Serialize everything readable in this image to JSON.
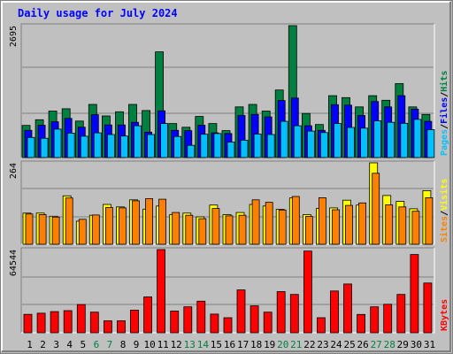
{
  "chart_data": {
    "type": "bar",
    "title": "Daily usage for July 2024",
    "categories": [
      "1",
      "2",
      "3",
      "4",
      "5",
      "6",
      "7",
      "8",
      "9",
      "10",
      "11",
      "12",
      "13",
      "14",
      "15",
      "16",
      "17",
      "18",
      "19",
      "20",
      "21",
      "22",
      "23",
      "24",
      "25",
      "26",
      "27",
      "28",
      "29",
      "30",
      "31"
    ],
    "weekend_days": [
      "6",
      "7",
      "13",
      "14",
      "20",
      "21",
      "27",
      "28"
    ],
    "colors": {
      "background": "#c0c0c0",
      "title": "#0000ff",
      "weekday_label": "#000000",
      "weekend_label": "#008040",
      "hits": "#008040",
      "files": "#0000ff",
      "pages": "#00c0ff",
      "visits": "#ffff00",
      "sites": "#ff8000",
      "kbytes": "#ff0000"
    },
    "panels": [
      {
        "ymax_label": "2695",
        "ylim": [
          0,
          2695
        ],
        "legend_words": [
          {
            "text": "Pages",
            "color": "#00c0ff"
          },
          {
            "text": "/",
            "color": "#000000"
          },
          {
            "text": "Files",
            "color": "#0000ff"
          },
          {
            "text": "/",
            "color": "#000000"
          },
          {
            "text": "Hits",
            "color": "#008040"
          }
        ],
        "series": [
          {
            "name": "Hits",
            "color": "#008040",
            "values": [
              656,
              773,
              950,
              997,
              745,
              1085,
              850,
              935,
              1085,
              960,
              2160,
              695,
              618,
              840,
              695,
              550,
              1035,
              1085,
              950,
              1380,
              2695,
              900,
              675,
              1265,
              1225,
              1035,
              1265,
              1170,
              1510,
              1035,
              880
            ]
          },
          {
            "name": "Files",
            "color": "#0000ff",
            "values": [
              555,
              660,
              730,
              800,
              620,
              875,
              665,
              665,
              720,
              520,
              955,
              555,
              550,
              660,
              505,
              490,
              860,
              880,
              830,
              1165,
              1215,
              650,
              555,
              1080,
              1070,
              860,
              1145,
              1035,
              1265,
              990,
              740
            ]
          },
          {
            "name": "Pages",
            "color": "#00c0ff",
            "values": [
              410,
              395,
              580,
              500,
              435,
              505,
              470,
              440,
              650,
              470,
              695,
              430,
              250,
              475,
              490,
              315,
              355,
              480,
              470,
              740,
              650,
              540,
              510,
              695,
              615,
              600,
              750,
              720,
              700,
              780,
              570
            ]
          }
        ]
      },
      {
        "ymax_label": "264",
        "ylim": [
          0,
          264
        ],
        "legend_words": [
          {
            "text": "Sites",
            "color": "#ff8000"
          },
          {
            "text": "/",
            "color": "#000000"
          },
          {
            "text": "Visits",
            "color": "#ffff00"
          }
        ],
        "series": [
          {
            "name": "Visits",
            "color": "#ffff00",
            "values": [
              101,
              101,
              91,
              157,
              75,
              94,
              129,
              121,
              144,
              114,
              124,
              96,
              101,
              89,
              127,
              96,
              103,
              129,
              124,
              113,
              150,
              96,
              116,
              118,
              143,
              127,
              264,
              158,
              139,
              115,
              174
            ]
          },
          {
            "name": "Sites",
            "color": "#ff8000",
            "values": [
              98,
              96,
              88,
              150,
              81,
              95,
              119,
              118,
              141,
              148,
              146,
              103,
              94,
              83,
              116,
              92,
              94,
              144,
              136,
              111,
              155,
              90,
              151,
              112,
              126,
              134,
              230,
              128,
              121,
              107,
              151
            ]
          }
        ]
      },
      {
        "ymax_label": "64544",
        "ylim": [
          0,
          64544
        ],
        "legend_words": [
          {
            "text": "KBytes",
            "color": "#ff0000"
          }
        ],
        "series": [
          {
            "name": "KBytes",
            "color": "#ff0000",
            "values": [
              14300,
              15200,
              16400,
              17200,
              21900,
              16000,
              9300,
              9300,
              17500,
              27800,
              64544,
              16800,
              20100,
              24500,
              14500,
              11700,
              33200,
              20900,
              16000,
              31900,
              29700,
              63400,
              11700,
              32400,
              37800,
              14200,
              20100,
              22100,
              29700,
              60700,
              38600
            ]
          }
        ]
      }
    ]
  }
}
